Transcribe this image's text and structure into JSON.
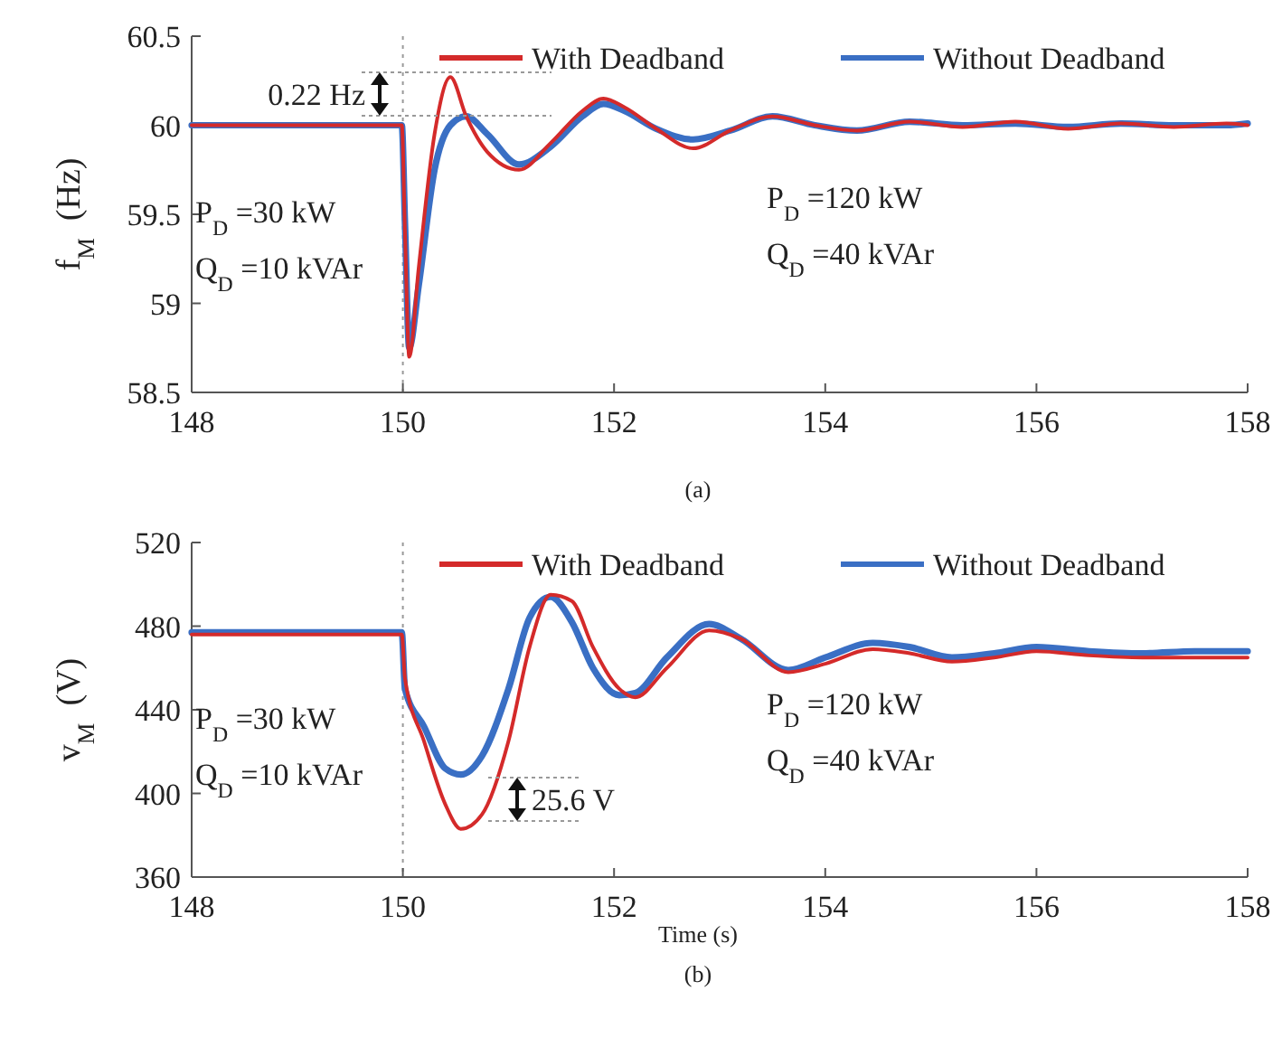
{
  "chart_data": [
    {
      "type": "line",
      "ylabel": "f$_{M}$  (Hz)",
      "x": [
        148,
        149,
        149.99,
        150.02,
        150.06,
        150.15,
        150.3,
        150.45,
        150.6,
        150.8,
        151.1,
        151.4,
        151.7,
        151.9,
        152.1,
        152.4,
        152.75,
        153.1,
        153.5,
        153.9,
        154.3,
        154.8,
        155.3,
        155.8,
        156.3,
        156.8,
        157.3,
        157.8,
        158
      ],
      "xlim": [
        148,
        158
      ],
      "xticks": [
        148,
        150,
        152,
        154,
        156,
        158
      ],
      "ylim": [
        58.5,
        60.5
      ],
      "yticks": [
        58.5,
        59,
        59.5,
        60,
        60.5
      ],
      "series": [
        {
          "name": "With Deadband",
          "color": "#d42a2a",
          "values": [
            60,
            60,
            60,
            59.4,
            58.7,
            59.2,
            59.95,
            60.27,
            60.05,
            59.85,
            59.75,
            59.9,
            60.08,
            60.15,
            60.1,
            59.98,
            59.87,
            59.97,
            60.05,
            60.0,
            59.97,
            60.02,
            59.99,
            60.02,
            59.98,
            60.01,
            59.99,
            60.01,
            60.0
          ]
        },
        {
          "name": "Without Deadband",
          "color": "#3a6fc4",
          "values": [
            60,
            60,
            60,
            59.45,
            58.75,
            59.1,
            59.75,
            60.0,
            60.05,
            59.95,
            59.78,
            59.88,
            60.05,
            60.12,
            60.08,
            59.98,
            59.92,
            59.97,
            60.05,
            60.0,
            59.97,
            60.02,
            60.0,
            60.01,
            59.99,
            60.01,
            60.0,
            60.0,
            60.01
          ]
        }
      ],
      "ref_lines": [
        {
          "axis": "x",
          "value": 150,
          "line_style": "dotted",
          "color": "#999999"
        }
      ],
      "legend": "top right",
      "grid": false,
      "line_style": "solid",
      "marker": "none",
      "annotations": [
        "0.22 Hz",
        "P$_{D}$ =30 kW",
        "Q$_{D}$ =10 kVAr",
        "P$_{D}$ =120 kW",
        "Q$_{D}$ =40 kVAr",
        "(a)"
      ]
    },
    {
      "type": "line",
      "xlabel": "Time (s)",
      "ylabel": "v$_{M}$  (V)",
      "x": [
        148,
        149,
        149.99,
        150.02,
        150.2,
        150.4,
        150.55,
        150.75,
        151.0,
        151.2,
        151.4,
        151.6,
        151.8,
        152.05,
        152.2,
        152.5,
        152.9,
        153.2,
        153.65,
        154.0,
        154.45,
        154.8,
        155.2,
        155.6,
        156.0,
        156.5,
        157,
        157.5,
        158
      ],
      "xlim": [
        148,
        158
      ],
      "xticks": [
        148,
        150,
        152,
        154,
        156,
        158
      ],
      "ylim": [
        360,
        520
      ],
      "yticks": [
        360,
        400,
        440,
        480,
        520
      ],
      "series": [
        {
          "name": "With Deadband",
          "color": "#d42a2a",
          "values": [
            476,
            476,
            476,
            455,
            425,
            395,
            383,
            390,
            425,
            470,
            495,
            492,
            470,
            450,
            446,
            460,
            478,
            474,
            458,
            462,
            469,
            467,
            463,
            465,
            468,
            466,
            465,
            465,
            465
          ]
        },
        {
          "name": "Without Deadband",
          "color": "#3a6fc4",
          "values": [
            477,
            477,
            477,
            450,
            432,
            412,
            409,
            418,
            450,
            484,
            494,
            482,
            460,
            447,
            448,
            465,
            481,
            474,
            459,
            465,
            472,
            470,
            465,
            467,
            470,
            468,
            467,
            468,
            468
          ]
        }
      ],
      "ref_lines": [
        {
          "axis": "x",
          "value": 150,
          "line_style": "dotted",
          "color": "#999999"
        }
      ],
      "legend": "top right",
      "grid": false,
      "line_style": "solid",
      "marker": "none",
      "annotations": [
        "25.6 V",
        "P$_{D}$ =30 kW",
        "Q$_{D}$ =10 kVAr",
        "P$_{D}$ =120 kW",
        "Q$_{D}$ =40 kVAr",
        "(b)"
      ]
    }
  ]
}
